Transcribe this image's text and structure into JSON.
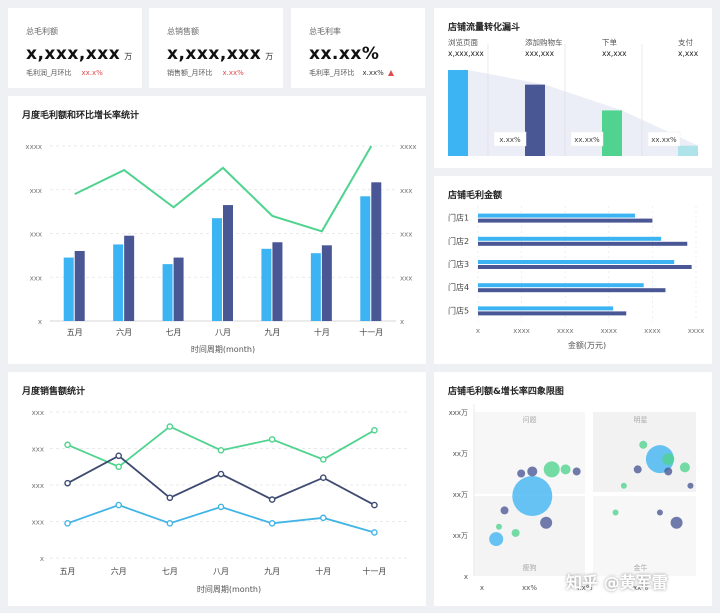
{
  "kpis": [
    {
      "label": "总毛利额",
      "value": "x,xxx,xxx",
      "unit": "万",
      "sub_label": "毛利润_月环比",
      "sub_value": "xx.x%"
    },
    {
      "label": "总销售额",
      "value": "x,xxx,xxx",
      "unit": "万",
      "sub_label": "销售额_月环比",
      "sub_value": "x.xx%"
    },
    {
      "label": "总毛利率",
      "value": "xx.xx%",
      "unit": "",
      "sub_label": "毛利率_月环比",
      "sub_value": "x.xx%"
    }
  ],
  "watermark": "知乎 @黄军雷",
  "colors": {
    "light_blue": "#3cb3f2",
    "navy": "#4a5795",
    "green": "#4fd38e",
    "line_blue": "#42b4e6",
    "line_navy": "#3d4a72",
    "grid": "#e3e3e3"
  },
  "chart_data": [
    {
      "type": "bar",
      "id": "monthly_profit",
      "title": "月度毛利额和环比增长率统计",
      "xlabel": "时间周期(month)",
      "categories": [
        "五月",
        "六月",
        "七月",
        "八月",
        "九月",
        "十月",
        "十一月"
      ],
      "y_ticks": [
        "x",
        "xxx",
        "xxx",
        "xxx",
        "xxxx"
      ],
      "y2_ticks": [
        "x",
        "xxx",
        "xxx",
        "xxx",
        "xxxx"
      ],
      "ylim": [
        0,
        4
      ],
      "y2lim": [
        0,
        4
      ],
      "series": [
        {
          "kind": "bar",
          "values": [
            1.45,
            1.75,
            1.3,
            2.35,
            1.65,
            1.55,
            2.85
          ]
        },
        {
          "kind": "bar",
          "values": [
            1.6,
            1.95,
            1.45,
            2.65,
            1.8,
            1.73,
            3.17
          ]
        },
        {
          "kind": "line",
          "axis": "right",
          "values": [
            2.9,
            3.45,
            2.6,
            3.5,
            2.4,
            2.05,
            4.0
          ]
        }
      ]
    },
    {
      "type": "bar",
      "id": "funnel",
      "title": "店铺流量转化漏斗",
      "categories": [
        "浏览页面",
        "添加购物车",
        "下单",
        "支付"
      ],
      "category_values": [
        "x,xxx,xxx",
        "xxx,xxx",
        "xx,xxx",
        "x,xxx"
      ],
      "conversion_labels": [
        "x.xx%",
        "xx.xx%",
        "xx.xx%"
      ],
      "values": [
        1.0,
        0.83,
        0.53,
        0.12
      ]
    },
    {
      "type": "bar",
      "id": "store_profit",
      "title": "店铺毛利金额",
      "orientation": "horizontal",
      "xlabel": "金额(万元)",
      "categories": [
        "门店1",
        "门店2",
        "门店3",
        "门店4",
        "门店5"
      ],
      "x_ticks": [
        "x",
        "xxxx",
        "xxxx",
        "xxxx",
        "xxxx",
        "xxxx"
      ],
      "xlim": [
        0,
        5
      ],
      "series": [
        {
          "values": [
            3.6,
            4.2,
            4.5,
            3.8,
            3.1
          ]
        },
        {
          "values": [
            4.0,
            4.8,
            4.9,
            4.3,
            3.4
          ]
        }
      ]
    },
    {
      "type": "line",
      "id": "monthly_sales",
      "title": "月度销售额统计",
      "xlabel": "时间周期(month)",
      "categories": [
        "五月",
        "六月",
        "七月",
        "八月",
        "九月",
        "十月",
        "十一月"
      ],
      "y_ticks": [
        "x",
        "xxx",
        "xxx",
        "xxx",
        "xxx"
      ],
      "ylim": [
        0,
        4
      ],
      "series": [
        {
          "color": "green",
          "values": [
            3.1,
            2.5,
            3.6,
            2.95,
            3.25,
            2.7,
            3.5
          ]
        },
        {
          "color": "navy",
          "values": [
            2.05,
            2.8,
            1.65,
            2.3,
            1.6,
            2.2,
            1.45
          ]
        },
        {
          "color": "blue",
          "values": [
            0.95,
            1.45,
            0.95,
            1.4,
            0.95,
            1.1,
            0.7
          ]
        }
      ]
    },
    {
      "type": "scatter",
      "id": "quadrant",
      "title": "店铺毛利额&增长率四象限图",
      "x_ticks": [
        "x",
        "xx%",
        "xx%",
        "xx%"
      ],
      "y_ticks": [
        "x",
        "xx万",
        "xx万",
        "xx万",
        "xxx万"
      ],
      "quadrant_labels": [
        "问题",
        "明星",
        "瘦狗",
        "金牛"
      ],
      "xlim": [
        0,
        4
      ],
      "ylim": [
        0,
        4
      ],
      "points": [
        {
          "x": 0.4,
          "y": 0.9,
          "r": 7,
          "color": "light_blue"
        },
        {
          "x": 1.05,
          "y": 1.95,
          "r": 20,
          "color": "light_blue"
        },
        {
          "x": 1.3,
          "y": 1.3,
          "r": 6,
          "color": "navy"
        },
        {
          "x": 0.55,
          "y": 1.6,
          "r": 4,
          "color": "navy"
        },
        {
          "x": 0.85,
          "y": 2.5,
          "r": 4,
          "color": "navy"
        },
        {
          "x": 1.05,
          "y": 2.55,
          "r": 5,
          "color": "navy"
        },
        {
          "x": 1.4,
          "y": 2.6,
          "r": 8,
          "color": "green"
        },
        {
          "x": 1.65,
          "y": 2.6,
          "r": 5,
          "color": "green"
        },
        {
          "x": 1.85,
          "y": 2.55,
          "r": 4,
          "color": "navy"
        },
        {
          "x": 0.75,
          "y": 1.05,
          "r": 4,
          "color": "green"
        },
        {
          "x": 0.45,
          "y": 1.2,
          "r": 3,
          "color": "green"
        },
        {
          "x": 2.55,
          "y": 1.55,
          "r": 3,
          "color": "green"
        },
        {
          "x": 2.7,
          "y": 2.2,
          "r": 3,
          "color": "green"
        },
        {
          "x": 2.95,
          "y": 2.6,
          "r": 4,
          "color": "navy"
        },
        {
          "x": 3.35,
          "y": 2.85,
          "r": 14,
          "color": "light_blue"
        },
        {
          "x": 3.5,
          "y": 2.85,
          "r": 6,
          "color": "green"
        },
        {
          "x": 3.05,
          "y": 3.2,
          "r": 4,
          "color": "green"
        },
        {
          "x": 3.8,
          "y": 2.65,
          "r": 5,
          "color": "green"
        },
        {
          "x": 3.5,
          "y": 2.55,
          "r": 4,
          "color": "navy"
        },
        {
          "x": 3.35,
          "y": 1.55,
          "r": 3,
          "color": "navy"
        },
        {
          "x": 3.65,
          "y": 1.3,
          "r": 6,
          "color": "navy"
        },
        {
          "x": 3.9,
          "y": 2.2,
          "r": 3,
          "color": "navy"
        }
      ]
    }
  ]
}
